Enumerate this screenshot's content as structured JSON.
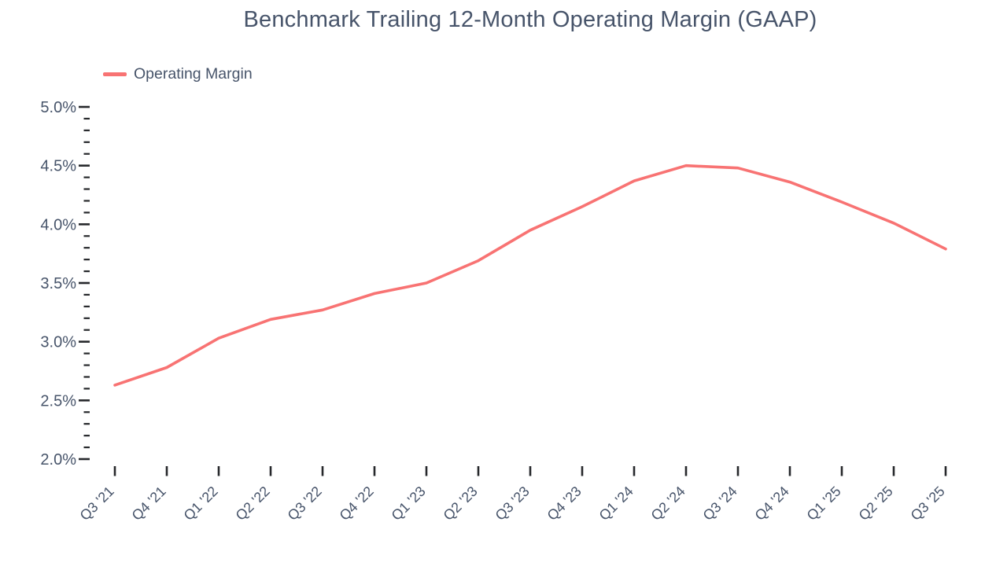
{
  "chart_data": {
    "type": "line",
    "title": "Benchmark Trailing 12-Month Operating Margin (GAAP)",
    "legend": [
      {
        "label": "Operating Margin",
        "color": "#f87373"
      }
    ],
    "legend_position": "top-left",
    "categories": [
      "Q3 '21",
      "Q4 '21",
      "Q1 '22",
      "Q2 '22",
      "Q3 '22",
      "Q4 '22",
      "Q1 '23",
      "Q2 '23",
      "Q3 '23",
      "Q4 '23",
      "Q1 '24",
      "Q2 '24",
      "Q3 '24",
      "Q4 '24",
      "Q1 '25",
      "Q2 '25",
      "Q3 '25"
    ],
    "series": [
      {
        "name": "Operating Margin",
        "values": [
          2.63,
          2.78,
          3.03,
          3.19,
          3.27,
          3.41,
          3.5,
          3.69,
          3.95,
          4.15,
          4.37,
          4.5,
          4.48,
          4.36,
          4.19,
          4.01,
          3.79
        ],
        "unit": "%",
        "color": "#f87373"
      }
    ],
    "xlabel": "",
    "ylabel": "",
    "ylim": [
      2.0,
      5.0
    ],
    "y_major_step": 0.5,
    "y_minor_step": 0.1,
    "y_tick_labels": [
      "2.0%",
      "2.5%",
      "3.0%",
      "3.5%",
      "4.0%",
      "4.5%",
      "5.0%"
    ],
    "grid": false,
    "colors": {
      "series": "#f87373",
      "text": "#47546a",
      "tick": "#26282b",
      "background": "#ffffff"
    }
  }
}
